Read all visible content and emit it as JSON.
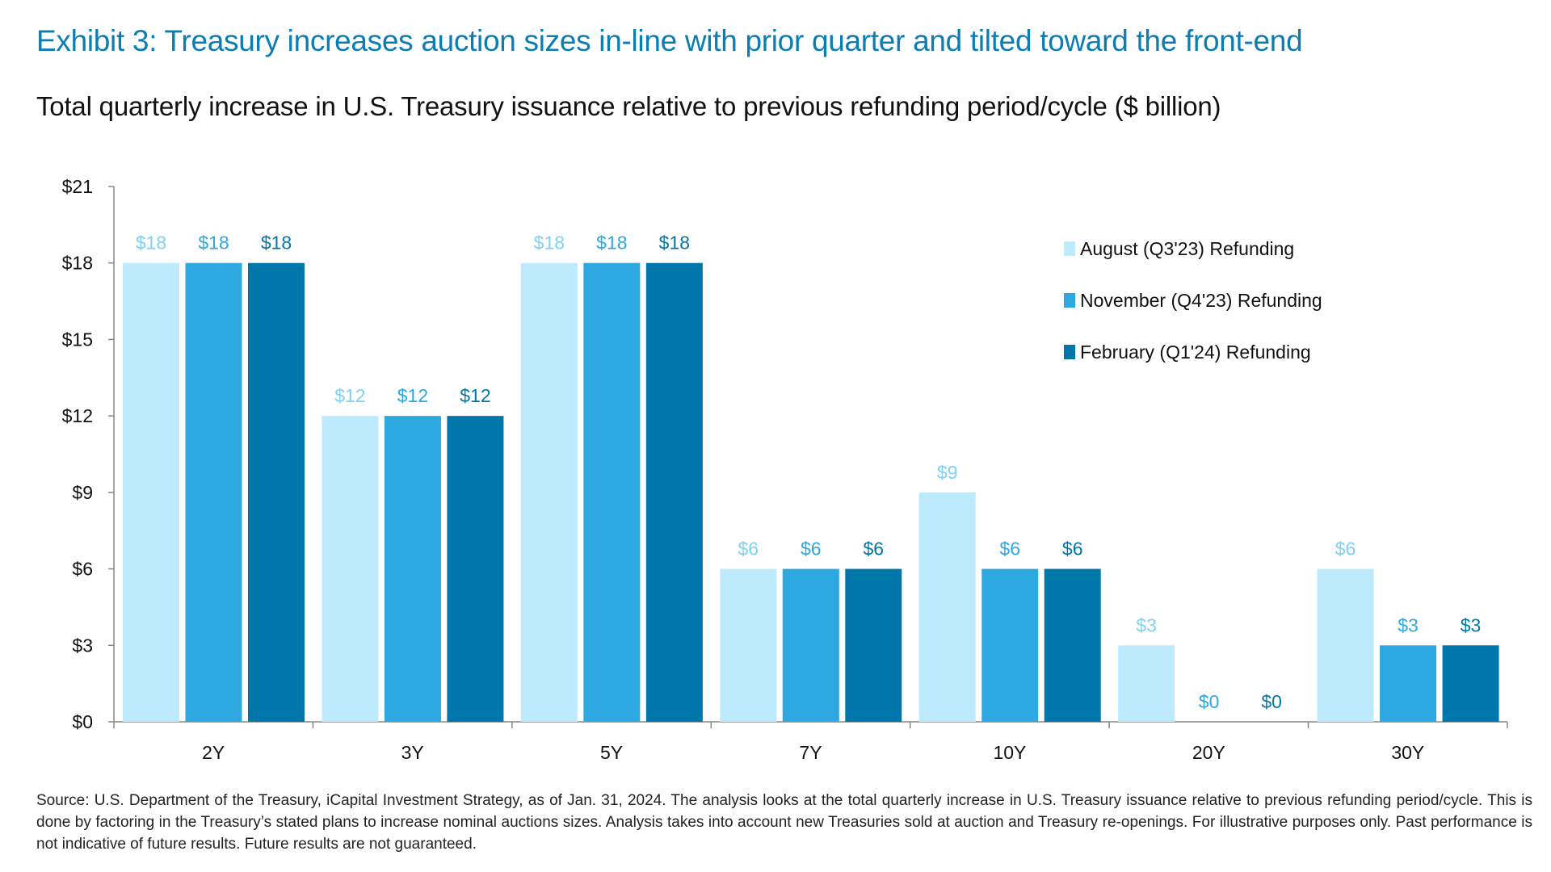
{
  "title": "Exhibit 3: Treasury increases auction sizes in-line with prior quarter and tilted toward the front-end",
  "subtitle": "Total quarterly increase in U.S. Treasury issuance relative to previous refunding period/cycle ($ billion)",
  "footer": "Source: U.S. Department of the Treasury, iCapital Investment Strategy, as of Jan. 31, 2024. The analysis looks at the total quarterly increase in U.S. Treasury issuance relative to previous refunding period/cycle. This is done by factoring in the Treasury’s stated plans to increase nominal auctions sizes. Analysis takes into account new Treasuries sold at auction and Treasury re-openings. For illustrative purposes only. Past performance is not indicative of future results. Future results are not guaranteed.",
  "chart_data": {
    "type": "bar",
    "categories": [
      "2Y",
      "3Y",
      "5Y",
      "7Y",
      "10Y",
      "20Y",
      "30Y"
    ],
    "series": [
      {
        "name": "August (Q3'23) Refunding",
        "values": [
          18,
          12,
          18,
          6,
          9,
          3,
          6
        ],
        "color": "#BDEBFD",
        "label_color": "#7FD0F5"
      },
      {
        "name": "November (Q4'23) Refunding",
        "values": [
          18,
          12,
          18,
          6,
          6,
          0,
          3
        ],
        "color": "#2DA8E1",
        "label_color": "#2DA8E1"
      },
      {
        "name": "February (Q1'24) Refunding",
        "values": [
          18,
          12,
          18,
          6,
          6,
          0,
          3
        ],
        "color": "#0077AA",
        "label_color": "#0077AA"
      }
    ],
    "yticks": [
      "$0",
      "$3",
      "$6",
      "$9",
      "$12",
      "$15",
      "$18",
      "$21"
    ],
    "ylim": [
      0,
      21
    ],
    "value_prefix": "$",
    "legend_position": "top-right",
    "grid": false
  }
}
